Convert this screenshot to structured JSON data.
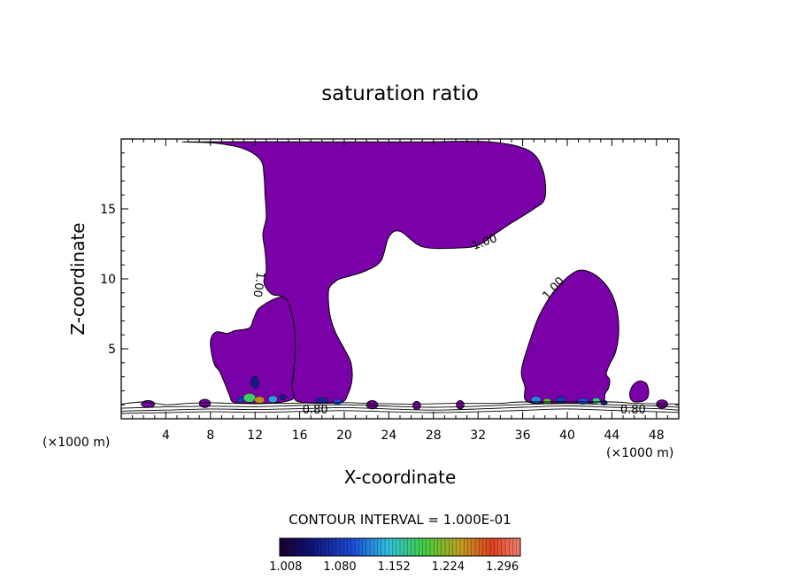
{
  "chart_data": {
    "type": "heatmap",
    "title": "saturation ratio",
    "xlabel": "X-coordinate",
    "ylabel": "Z-coordinate",
    "x_unit_label": "(×1000 m)",
    "xlim": [
      0,
      50
    ],
    "ylim": [
      0,
      20
    ],
    "x_ticks": [
      4,
      8,
      12,
      16,
      20,
      24,
      28,
      32,
      36,
      40,
      44,
      48
    ],
    "y_ticks": [
      5,
      10,
      15
    ],
    "contour_interval_text": "CONTOUR INTERVAL = 1.000E-01",
    "colorbar": {
      "min": 1.0,
      "max": 1.32,
      "tick_values": [
        "1.008",
        "1.080",
        "1.152",
        "1.224",
        "1.296"
      ]
    },
    "fill_color": "#7a00a8",
    "contour_labels": [
      {
        "text": "1.00",
        "x": 32.6,
        "y": 12.6,
        "angle": -20
      },
      {
        "text": "1.00",
        "x": 38.8,
        "y": 9.3,
        "angle": -48
      },
      {
        "text": "1.00",
        "x": 12.3,
        "y": 9.6,
        "angle": 98
      },
      {
        "text": "0.80",
        "x": 17.4,
        "y": 0.6,
        "angle": 0
      },
      {
        "text": "0.80",
        "x": 45.9,
        "y": 0.6,
        "angle": 0
      }
    ],
    "regions": [
      {
        "name": "upper-cloud",
        "value": 1.0,
        "outline": [
          [
            6.0,
            19.8
          ],
          [
            19.0,
            19.8
          ],
          [
            27.0,
            19.8
          ],
          [
            33.0,
            19.8
          ],
          [
            36.5,
            19.2
          ],
          [
            37.8,
            17.8
          ],
          [
            38.0,
            15.8
          ],
          [
            37.0,
            15.0
          ],
          [
            35.0,
            14.0
          ],
          [
            33.5,
            13.2
          ],
          [
            32.0,
            12.4
          ],
          [
            30.0,
            12.2
          ],
          [
            27.0,
            12.3
          ],
          [
            25.0,
            13.4
          ],
          [
            24.0,
            13.0
          ],
          [
            23.3,
            11.3
          ],
          [
            22.0,
            10.6
          ],
          [
            20.5,
            10.2
          ],
          [
            19.6,
            10.0
          ],
          [
            19.2,
            9.8
          ],
          [
            18.6,
            9.2
          ],
          [
            18.7,
            7.5
          ],
          [
            19.2,
            6.2
          ],
          [
            20.0,
            5.0
          ],
          [
            20.6,
            4.0
          ],
          [
            20.7,
            2.8
          ],
          [
            20.3,
            1.7
          ],
          [
            19.8,
            1.2
          ],
          [
            18.0,
            1.1
          ],
          [
            16.0,
            1.2
          ],
          [
            15.5,
            1.5
          ],
          [
            15.3,
            2.3
          ],
          [
            15.4,
            2.9
          ],
          [
            15.5,
            3.7
          ],
          [
            15.6,
            5.5
          ],
          [
            15.3,
            7.5
          ],
          [
            14.5,
            8.7
          ],
          [
            13.5,
            8.9
          ],
          [
            12.8,
            9.7
          ],
          [
            13.0,
            10.6
          ],
          [
            12.9,
            12.0
          ],
          [
            12.7,
            13.2
          ],
          [
            13.0,
            14.4
          ],
          [
            12.9,
            16.0
          ],
          [
            12.8,
            17.4
          ],
          [
            12.5,
            18.5
          ],
          [
            11.0,
            19.3
          ],
          [
            8.5,
            19.7
          ],
          [
            6.0,
            19.8
          ]
        ]
      },
      {
        "name": "left-stalk",
        "value": 1.0,
        "outline": [
          [
            15.6,
            5.5
          ],
          [
            15.3,
            7.5
          ],
          [
            14.5,
            8.7
          ],
          [
            12.5,
            8.0
          ],
          [
            11.9,
            7.2
          ],
          [
            11.5,
            6.5
          ],
          [
            10.2,
            6.3
          ],
          [
            9.5,
            6.1
          ],
          [
            8.5,
            6.2
          ],
          [
            8.0,
            5.5
          ],
          [
            8.3,
            4.0
          ],
          [
            8.8,
            3.4
          ],
          [
            9.2,
            2.7
          ],
          [
            9.7,
            1.7
          ],
          [
            10.0,
            1.2
          ],
          [
            11.0,
            1.1
          ],
          [
            13.0,
            1.1
          ],
          [
            14.5,
            1.2
          ],
          [
            15.5,
            1.5
          ],
          [
            15.3,
            2.3
          ],
          [
            15.5,
            3.7
          ],
          [
            15.6,
            5.5
          ]
        ]
      },
      {
        "name": "right-cell",
        "value": 1.0,
        "outline": [
          [
            36.5,
            1.2
          ],
          [
            36.2,
            2.3
          ],
          [
            35.9,
            3.5
          ],
          [
            36.7,
            5.7
          ],
          [
            37.5,
            7.4
          ],
          [
            38.7,
            9.0
          ],
          [
            40.0,
            10.1
          ],
          [
            41.0,
            10.6
          ],
          [
            42.0,
            10.5
          ],
          [
            43.1,
            9.9
          ],
          [
            44.0,
            8.9
          ],
          [
            44.5,
            7.6
          ],
          [
            44.6,
            6.0
          ],
          [
            44.3,
            4.7
          ],
          [
            43.8,
            3.9
          ],
          [
            43.5,
            3.2
          ],
          [
            43.8,
            2.8
          ],
          [
            43.7,
            2.2
          ],
          [
            43.4,
            1.8
          ],
          [
            43.0,
            1.2
          ],
          [
            40.0,
            1.1
          ],
          [
            36.5,
            1.2
          ]
        ]
      },
      {
        "name": "right-small-cell",
        "value": 1.0,
        "outline": [
          [
            45.8,
            1.3
          ],
          [
            45.6,
            1.8
          ],
          [
            45.9,
            2.4
          ],
          [
            46.5,
            2.7
          ],
          [
            47.1,
            2.5
          ],
          [
            47.3,
            1.9
          ],
          [
            47.1,
            1.4
          ],
          [
            46.4,
            1.2
          ],
          [
            45.8,
            1.3
          ]
        ]
      }
    ],
    "small_cells": [
      {
        "x": 2.4,
        "y": 1.05,
        "rx": 0.6,
        "ry": 0.25
      },
      {
        "x": 7.5,
        "y": 1.1,
        "rx": 0.5,
        "ry": 0.3
      },
      {
        "x": 22.5,
        "y": 1.0,
        "rx": 0.5,
        "ry": 0.3
      },
      {
        "x": 26.5,
        "y": 0.95,
        "rx": 0.35,
        "ry": 0.3
      },
      {
        "x": 30.4,
        "y": 1.0,
        "rx": 0.35,
        "ry": 0.3
      },
      {
        "x": 48.5,
        "y": 1.05,
        "rx": 0.5,
        "ry": 0.3
      }
    ],
    "hotspots": [
      {
        "x": 11.5,
        "y": 1.5,
        "rx": 0.55,
        "ry": 0.32,
        "value": 1.18
      },
      {
        "x": 12.4,
        "y": 1.35,
        "rx": 0.45,
        "ry": 0.25,
        "value": 1.25
      },
      {
        "x": 12.0,
        "y": 2.6,
        "rx": 0.35,
        "ry": 0.45,
        "value": 1.05
      },
      {
        "x": 13.6,
        "y": 1.4,
        "rx": 0.4,
        "ry": 0.25,
        "value": 1.13
      },
      {
        "x": 10.7,
        "y": 1.35,
        "rx": 0.3,
        "ry": 0.2,
        "value": 1.08
      },
      {
        "x": 14.5,
        "y": 1.55,
        "rx": 0.3,
        "ry": 0.2,
        "value": 1.05
      },
      {
        "x": 18.0,
        "y": 1.3,
        "rx": 0.55,
        "ry": 0.22,
        "value": 1.06
      },
      {
        "x": 19.4,
        "y": 1.2,
        "rx": 0.35,
        "ry": 0.2,
        "value": 1.1
      },
      {
        "x": 37.2,
        "y": 1.35,
        "rx": 0.45,
        "ry": 0.25,
        "value": 1.12
      },
      {
        "x": 38.2,
        "y": 1.25,
        "rx": 0.35,
        "ry": 0.2,
        "value": 1.2
      },
      {
        "x": 39.4,
        "y": 1.35,
        "rx": 0.45,
        "ry": 0.22,
        "value": 1.08
      },
      {
        "x": 41.4,
        "y": 1.25,
        "rx": 0.5,
        "ry": 0.22,
        "value": 1.1
      },
      {
        "x": 42.6,
        "y": 1.3,
        "rx": 0.35,
        "ry": 0.2,
        "value": 1.17
      },
      {
        "x": 43.3,
        "y": 1.15,
        "rx": 0.3,
        "ry": 0.18,
        "value": 1.06
      }
    ],
    "surface_contours": [
      {
        "level": 0.8,
        "points": [
          [
            0,
            0.55
          ],
          [
            4,
            0.62
          ],
          [
            8,
            0.7
          ],
          [
            12,
            0.66
          ],
          [
            16,
            0.72
          ],
          [
            20,
            0.8
          ],
          [
            24,
            0.7
          ],
          [
            28,
            0.62
          ],
          [
            32,
            0.7
          ],
          [
            36,
            0.82
          ],
          [
            40,
            0.92
          ],
          [
            44,
            0.82
          ],
          [
            48,
            0.72
          ],
          [
            50,
            0.62
          ]
        ]
      },
      {
        "level": 0.9,
        "points": [
          [
            0,
            0.75
          ],
          [
            4,
            0.85
          ],
          [
            8,
            0.9
          ],
          [
            12,
            0.86
          ],
          [
            16,
            0.95
          ],
          [
            20,
            1.0
          ],
          [
            24,
            0.9
          ],
          [
            28,
            0.82
          ],
          [
            32,
            0.9
          ],
          [
            36,
            1.02
          ],
          [
            40,
            1.1
          ],
          [
            44,
            1.0
          ],
          [
            48,
            0.92
          ],
          [
            50,
            0.82
          ]
        ]
      },
      {
        "level": 0.7,
        "points": [
          [
            0,
            0.38
          ],
          [
            4,
            0.44
          ],
          [
            8,
            0.5
          ],
          [
            12,
            0.46
          ],
          [
            16,
            0.52
          ],
          [
            20,
            0.58
          ],
          [
            24,
            0.5
          ],
          [
            28,
            0.44
          ],
          [
            32,
            0.5
          ],
          [
            36,
            0.6
          ],
          [
            40,
            0.7
          ],
          [
            44,
            0.6
          ],
          [
            48,
            0.5
          ],
          [
            50,
            0.45
          ]
        ]
      },
      {
        "level": 1.0,
        "points": [
          [
            0,
            1.05
          ],
          [
            2,
            1.2
          ],
          [
            4,
            1.0
          ],
          [
            6,
            1.1
          ],
          [
            8,
            1.15
          ],
          [
            10,
            1.1
          ],
          [
            14,
            1.1
          ],
          [
            20,
            1.15
          ],
          [
            22,
            1.1
          ],
          [
            26,
            1.05
          ],
          [
            30,
            1.1
          ],
          [
            34,
            1.1
          ],
          [
            36,
            1.2
          ],
          [
            44,
            1.2
          ],
          [
            46,
            1.1
          ],
          [
            50,
            1.05
          ]
        ]
      }
    ]
  }
}
